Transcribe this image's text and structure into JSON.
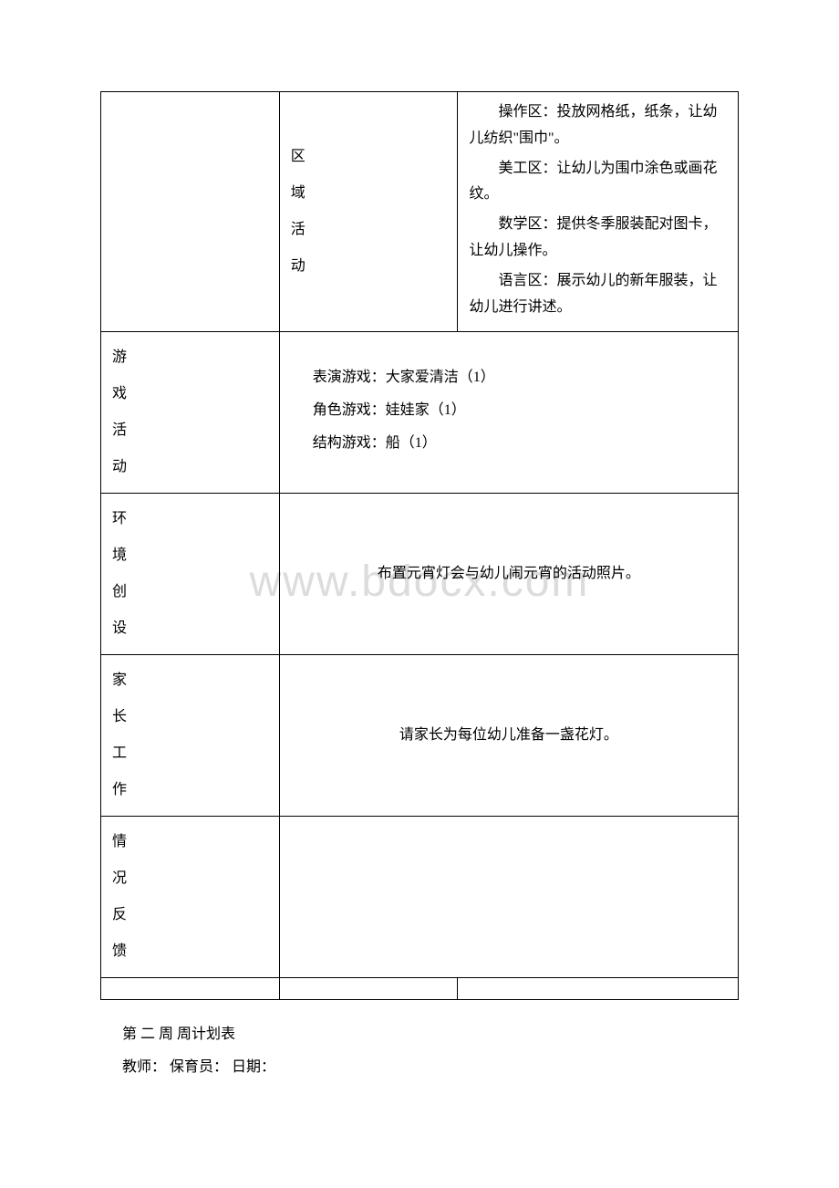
{
  "watermark": "www.bdocx.com",
  "table": {
    "row1": {
      "col2_lines": [
        "区",
        "域",
        "活",
        "动"
      ],
      "col3_items": [
        "操作区：投放网格纸，纸条，让幼儿纺织\"围巾\"。",
        "美工区：让幼儿为围巾涂色或画花纹。",
        "数学区：提供冬季服装配对图卡，让幼儿操作。",
        "语言区：展示幼儿的新年服装，让幼儿进行讲述。"
      ]
    },
    "row2": {
      "col1_lines": [
        "游",
        "戏",
        "活",
        "动"
      ],
      "col23_items": [
        "表演游戏：大家爱清洁（1）",
        "角色游戏：娃娃家（1）",
        "结构游戏：船（1）"
      ]
    },
    "row3": {
      "col1_lines": [
        "环",
        "境",
        "创",
        "设"
      ],
      "col23_text": "布置元宵灯会与幼儿闹元宵的活动照片。"
    },
    "row4": {
      "col1_lines": [
        "家",
        "长",
        "工",
        "作"
      ],
      "col23_text": "请家长为每位幼儿准备一盏花灯。"
    },
    "row5": {
      "col1_lines": [
        "情",
        "况",
        "反",
        "馈"
      ],
      "col23_text": ""
    }
  },
  "footer": {
    "line1": "第 二 周 周计划表",
    "line2": "教师： 保育员： 日期："
  }
}
